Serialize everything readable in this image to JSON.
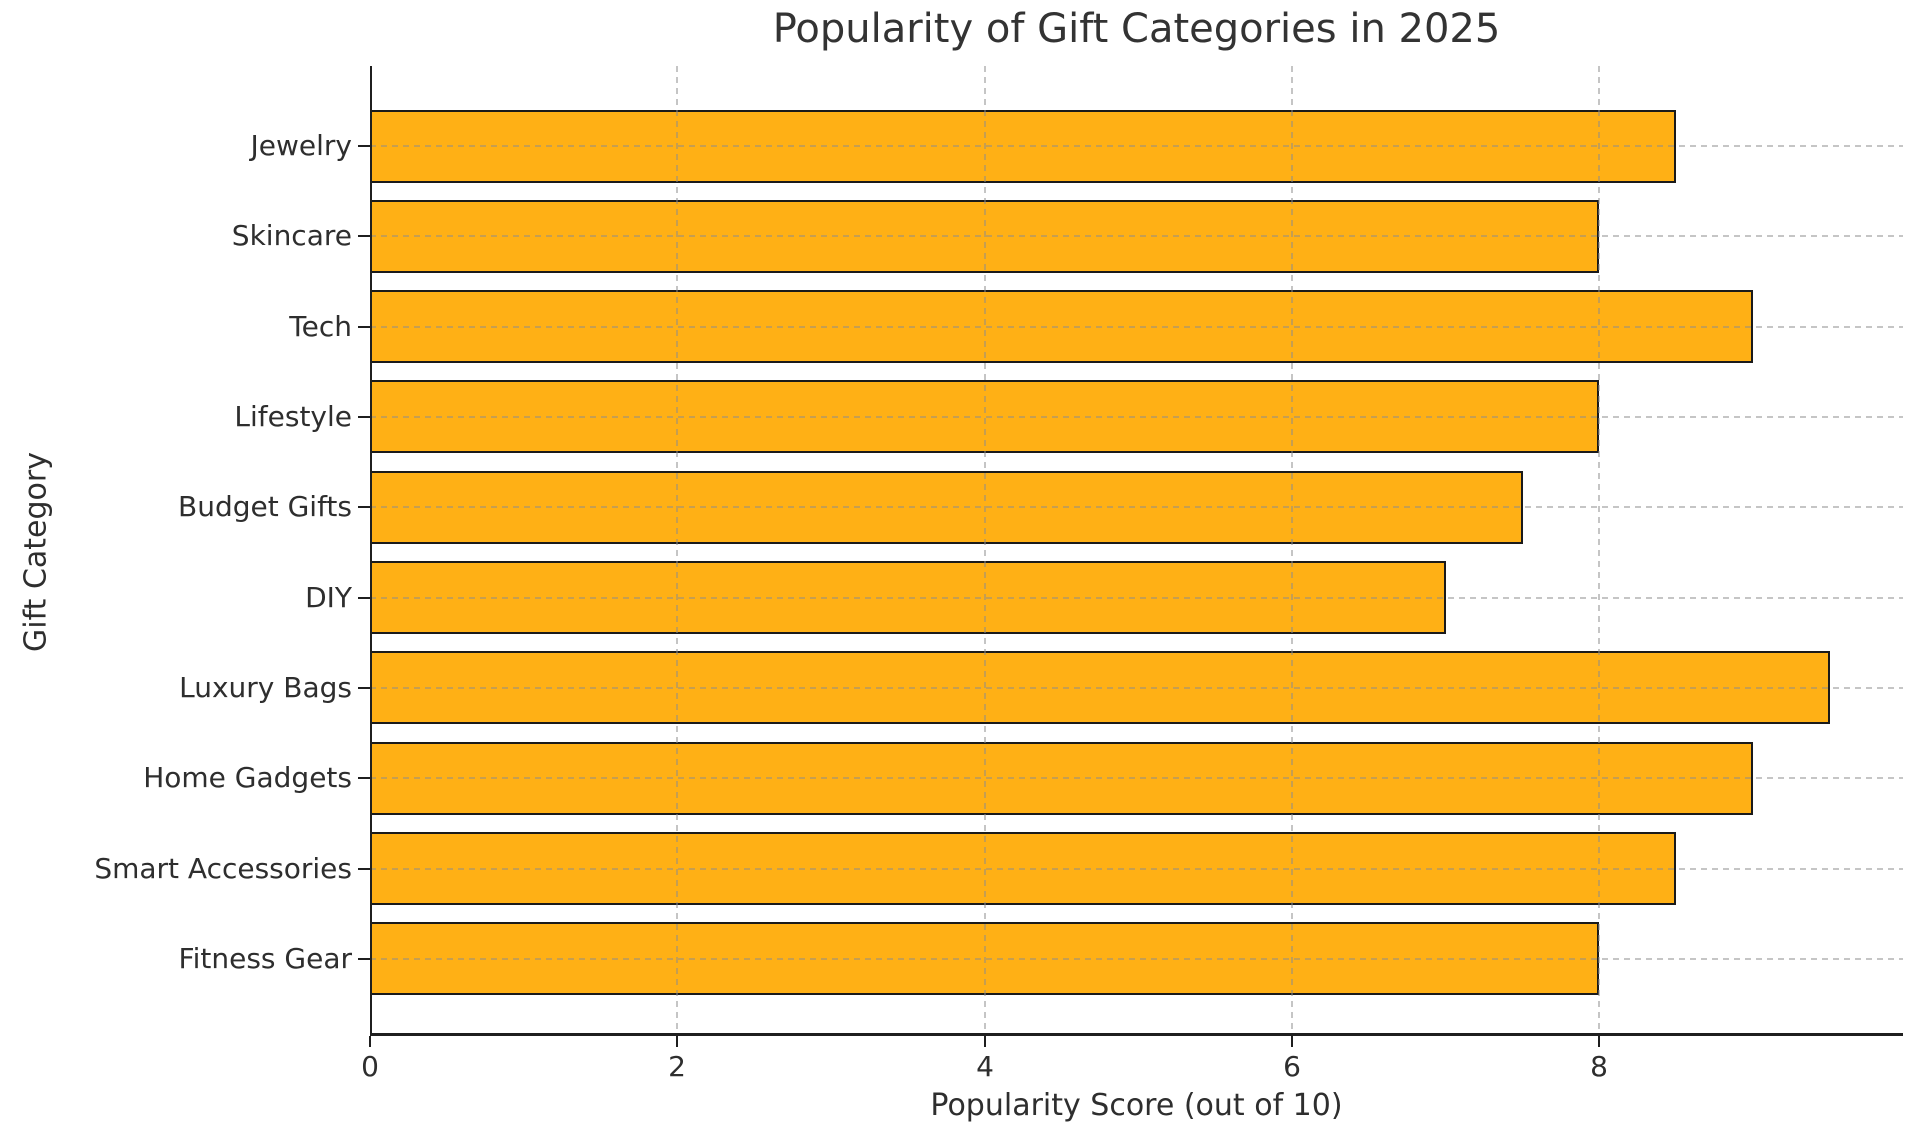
{
  "chart_data": {
    "type": "bar",
    "orientation": "horizontal",
    "title": "Popularity of Gift Categories in 2025",
    "xlabel": "Popularity Score (out of 10)",
    "ylabel": "Gift Category",
    "categories": [
      "Jewelry",
      "Skincare",
      "Tech",
      "Lifestyle",
      "Budget Gifts",
      "DIY",
      "Luxury Bags",
      "Home Gadgets",
      "Smart Accessories",
      "Fitness Gear"
    ],
    "values": [
      8.5,
      8,
      9,
      8,
      7.5,
      7,
      9.5,
      9,
      8.5,
      8
    ],
    "xlim": [
      0,
      9.975
    ],
    "xticks": [
      0,
      2,
      4,
      6,
      8
    ],
    "xtick_labels": [
      "0",
      "2",
      "4",
      "6",
      "8"
    ],
    "grid": "both, dashed, drawn over bars",
    "legend": "none",
    "colors": {
      "bar_fill": "#FFB015",
      "bar_edge": "#1A1A1A",
      "grid": "#C9C9C9",
      "text": "#2E2E2E",
      "spine": "#1F1F1F"
    }
  }
}
